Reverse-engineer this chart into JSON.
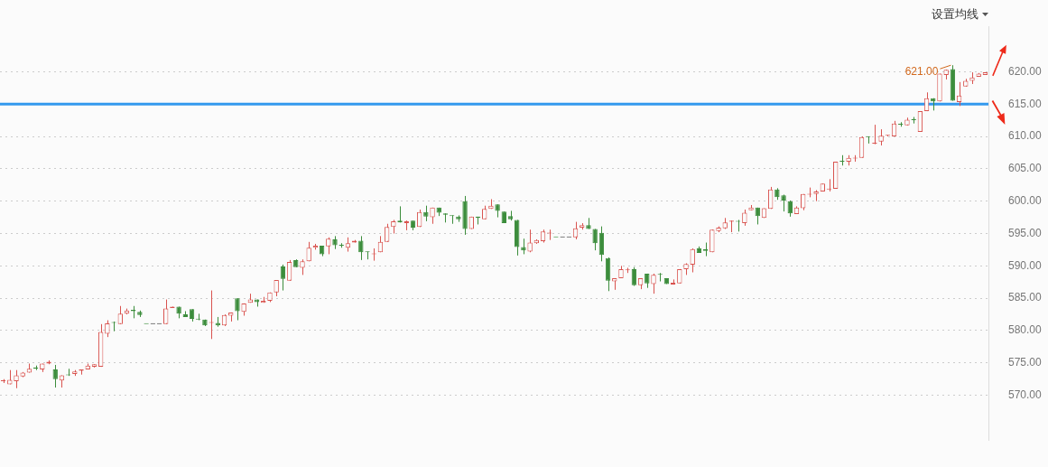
{
  "chart_data": {
    "type": "candlestick",
    "categories": [
      null,
      null,
      null,
      null,
      null,
      null,
      null,
      null,
      null,
      null,
      null,
      null,
      null,
      null,
      null,
      null,
      null,
      null,
      null,
      null,
      null,
      null,
      null,
      null,
      null,
      null,
      null,
      null,
      null,
      null,
      null,
      null,
      null,
      null,
      null,
      null,
      null,
      null,
      null,
      null,
      null,
      null,
      null,
      null,
      null,
      null,
      null,
      null,
      null,
      null,
      null,
      null,
      null,
      null,
      null,
      null,
      null,
      null,
      null,
      null,
      null,
      null,
      null,
      null,
      null,
      null,
      null,
      null,
      null,
      null,
      null,
      null,
      null,
      null,
      null,
      null,
      null,
      null,
      null,
      null,
      null,
      null,
      null,
      null,
      null,
      null,
      null,
      null,
      null,
      null,
      null,
      null,
      null,
      null,
      null,
      null,
      null,
      null,
      null,
      null,
      null,
      null,
      null,
      null,
      null,
      null,
      null,
      null,
      null,
      null,
      null,
      null,
      null,
      null,
      null,
      null,
      null,
      null,
      null,
      null,
      null,
      null,
      null,
      null,
      null,
      null,
      null,
      null,
      null,
      null,
      null,
      null,
      null,
      null,
      null,
      null,
      null,
      null,
      null,
      null,
      null,
      null,
      null,
      null,
      null,
      null,
      null,
      null,
      null,
      null,
      null,
      null
    ],
    "ohlc": [
      [
        572.2,
        572.5,
        571.9,
        572.2
      ],
      [
        571.7,
        573.9,
        571.7,
        572.4
      ],
      [
        572.2,
        573.9,
        571.1,
        573.1
      ],
      [
        572.9,
        573.6,
        572.8,
        573.5
      ],
      [
        573.5,
        574.9,
        573.5,
        574.1
      ],
      [
        574.3,
        574.6,
        573.9,
        574.1
      ],
      [
        574.0,
        574.9,
        573.6,
        574.9
      ],
      [
        574.9,
        575.4,
        574.8,
        575.2
      ],
      [
        574.0,
        574.7,
        571.2,
        572.5
      ],
      [
        572.3,
        573.1,
        571.2,
        573.1
      ],
      [
        573.2,
        574.1,
        573.0,
        573.1
      ],
      [
        573.3,
        573.9,
        573.0,
        573.7
      ],
      [
        573.8,
        574.0,
        573.2,
        574.0
      ],
      [
        574.0,
        574.9,
        574.0,
        574.6
      ],
      [
        574.4,
        574.8,
        574.3,
        574.8
      ],
      [
        574.4,
        581.0,
        574.4,
        579.8
      ],
      [
        579.5,
        581.6,
        579.0,
        581.1
      ],
      [
        581.3,
        581.4,
        579.9,
        581.2
      ],
      [
        581.0,
        583.8,
        581.0,
        582.6
      ],
      [
        582.6,
        583.4,
        582.5,
        583.1
      ],
      [
        583.2,
        583.8,
        581.9,
        583.0
      ],
      [
        582.9,
        583.1,
        582.1,
        582.4
      ],
      [
        581.0,
        581.0,
        581.0,
        581.0
      ],
      [
        581.0,
        581.0,
        581.0,
        581.0
      ],
      [
        581.0,
        581.0,
        581.0,
        581.0
      ],
      [
        581.0,
        584.8,
        581.0,
        583.4
      ],
      [
        583.5,
        583.7,
        583.5,
        583.7
      ],
      [
        583.7,
        583.7,
        581.9,
        582.6
      ],
      [
        582.5,
        583.0,
        582.1,
        582.1
      ],
      [
        583.3,
        583.3,
        581.4,
        581.8
      ],
      [
        581.8,
        582.6,
        581.6,
        581.7
      ],
      [
        581.7,
        581.7,
        580.7,
        580.8
      ],
      [
        581.2,
        586.2,
        578.7,
        581.3
      ],
      [
        581.2,
        582.1,
        580.6,
        580.8
      ],
      [
        580.8,
        582.5,
        580.7,
        582.4
      ],
      [
        582.3,
        582.8,
        581.4,
        582.8
      ],
      [
        585.0,
        585.0,
        581.6,
        583.0
      ],
      [
        582.9,
        584.2,
        582.3,
        584.2
      ],
      [
        584.3,
        585.7,
        584.3,
        584.8
      ],
      [
        584.8,
        584.8,
        583.7,
        584.4
      ],
      [
        584.3,
        585.2,
        584.3,
        584.6
      ],
      [
        584.6,
        585.9,
        584.4,
        585.9
      ],
      [
        585.9,
        587.8,
        585.3,
        587.8
      ],
      [
        589.9,
        590.2,
        586.2,
        588.0
      ],
      [
        587.7,
        590.9,
        587.7,
        590.6
      ],
      [
        590.9,
        591.0,
        589.8,
        589.8
      ],
      [
        589.7,
        591.0,
        588.6,
        590.7
      ],
      [
        590.7,
        593.7,
        590.7,
        592.8
      ],
      [
        592.8,
        593.4,
        592.5,
        593.1
      ],
      [
        593.1,
        593.1,
        591.5,
        591.8
      ],
      [
        593.0,
        594.4,
        591.8,
        594.2
      ],
      [
        594.1,
        594.6,
        592.6,
        593.2
      ],
      [
        593.2,
        593.5,
        592.8,
        593.1
      ],
      [
        592.8,
        594.4,
        592.2,
        593.5
      ],
      [
        593.6,
        594.0,
        593.6,
        593.9
      ],
      [
        593.9,
        594.6,
        590.9,
        592.1
      ],
      [
        592.2,
        592.2,
        591.0,
        592.1
      ],
      [
        591.8,
        592.7,
        590.8,
        591.9
      ],
      [
        592.1,
        594.6,
        592.1,
        593.7
      ],
      [
        593.7,
        596.5,
        593.7,
        596.0
      ],
      [
        596.0,
        597.1,
        595.0,
        596.9
      ],
      [
        597.0,
        599.2,
        596.7,
        596.7
      ],
      [
        596.6,
        597.0,
        595.5,
        596.9
      ],
      [
        597.0,
        597.0,
        595.5,
        595.9
      ],
      [
        596.0,
        598.7,
        596.0,
        598.3
      ],
      [
        598.3,
        599.3,
        596.9,
        597.6
      ],
      [
        597.5,
        599.0,
        596.5,
        599.0
      ],
      [
        599.0,
        599.0,
        597.7,
        598.2
      ],
      [
        598.1,
        598.1,
        596.7,
        597.9
      ],
      [
        597.8,
        597.8,
        596.5,
        597.7
      ],
      [
        597.6,
        597.8,
        596.8,
        597.2
      ],
      [
        600.0,
        600.8,
        594.8,
        595.7
      ],
      [
        595.7,
        597.6,
        595.7,
        597.6
      ],
      [
        597.6,
        597.6,
        596.4,
        597.4
      ],
      [
        597.2,
        599.3,
        597.2,
        598.8
      ],
      [
        598.8,
        600.3,
        598.8,
        599.3
      ],
      [
        599.5,
        599.5,
        597.5,
        598.5
      ],
      [
        598.4,
        598.4,
        596.6,
        596.6
      ],
      [
        597.7,
        598.5,
        597.0,
        597.2
      ],
      [
        597.1,
        597.1,
        591.6,
        592.9
      ],
      [
        592.9,
        594.2,
        591.8,
        592.4
      ],
      [
        592.2,
        595.6,
        592.1,
        593.6
      ],
      [
        593.5,
        594.1,
        593.4,
        594.0
      ],
      [
        593.8,
        595.6,
        593.6,
        595.3
      ],
      [
        595.0,
        595.6,
        594.0,
        595.1
      ],
      [
        594.4,
        594.4,
        594.4,
        594.4
      ],
      [
        594.4,
        594.4,
        594.4,
        594.4
      ],
      [
        594.4,
        594.4,
        594.4,
        594.4
      ],
      [
        594.4,
        596.8,
        594.1,
        595.8
      ],
      [
        595.9,
        596.6,
        595.6,
        596.3
      ],
      [
        596.3,
        597.4,
        595.7,
        595.7
      ],
      [
        595.7,
        595.7,
        592.4,
        593.5
      ],
      [
        595.1,
        596.1,
        590.7,
        591.7
      ],
      [
        591.2,
        591.3,
        586.1,
        587.7
      ],
      [
        587.6,
        588.1,
        586.3,
        588.1
      ],
      [
        588.1,
        590.0,
        588.1,
        589.5
      ],
      [
        589.3,
        589.7,
        588.9,
        589.4
      ],
      [
        589.5,
        589.8,
        586.9,
        587.0
      ],
      [
        587.0,
        588.1,
        586.4,
        588.1
      ],
      [
        588.8,
        588.8,
        586.6,
        587.3
      ],
      [
        587.2,
        588.8,
        585.7,
        588.6
      ],
      [
        588.7,
        588.9,
        587.6,
        588.6
      ],
      [
        588.1,
        588.1,
        587.2,
        587.2
      ],
      [
        587.1,
        587.9,
        587.1,
        587.4
      ],
      [
        587.3,
        589.5,
        587.3,
        589.5
      ],
      [
        589.5,
        590.4,
        588.6,
        590.3
      ],
      [
        590.2,
        592.7,
        589.0,
        592.6
      ],
      [
        592.7,
        593.0,
        592.0,
        592.0
      ],
      [
        592.6,
        593.6,
        591.5,
        592.3
      ],
      [
        592.1,
        595.6,
        592.1,
        595.6
      ],
      [
        595.4,
        596.1,
        595.2,
        595.9
      ],
      [
        595.8,
        597.4,
        595.7,
        596.7
      ],
      [
        596.8,
        597.0,
        595.2,
        597.0
      ],
      [
        596.9,
        597.1,
        595.3,
        596.8
      ],
      [
        596.6,
        598.7,
        596.2,
        598.2
      ],
      [
        598.6,
        599.4,
        598.6,
        599.0
      ],
      [
        599.0,
        599.0,
        596.4,
        597.7
      ],
      [
        597.4,
        598.9,
        597.4,
        598.9
      ],
      [
        598.8,
        602.2,
        598.8,
        601.8
      ],
      [
        601.8,
        602.0,
        600.2,
        600.6
      ],
      [
        600.9,
        601.0,
        598.4,
        600.1
      ],
      [
        600.0,
        600.1,
        597.6,
        598.1
      ],
      [
        598.0,
        599.2,
        598.0,
        599.0
      ],
      [
        598.9,
        601.1,
        598.6,
        601.1
      ],
      [
        601.0,
        602.1,
        600.6,
        601.1
      ],
      [
        601.1,
        601.7,
        600.0,
        601.5
      ],
      [
        601.5,
        602.7,
        601.5,
        602.7
      ],
      [
        601.8,
        603.4,
        601.5,
        601.9
      ],
      [
        601.9,
        606.1,
        601.9,
        606.1
      ],
      [
        606.2,
        607.1,
        605.5,
        606.1
      ],
      [
        606.1,
        607.1,
        605.5,
        606.7
      ],
      [
        606.6,
        607.1,
        606.1,
        606.7
      ],
      [
        606.7,
        610.0,
        606.7,
        609.9
      ],
      [
        610.0,
        610.0,
        608.9,
        609.9
      ],
      [
        608.9,
        611.8,
        608.8,
        609.0
      ],
      [
        609.2,
        611.1,
        608.6,
        610.1
      ],
      [
        610.1,
        610.2,
        610.0,
        610.2
      ],
      [
        610.0,
        612.4,
        610.0,
        612.0
      ],
      [
        611.9,
        612.2,
        611.5,
        611.8
      ],
      [
        611.7,
        612.9,
        611.7,
        612.6
      ],
      [
        612.6,
        613.0,
        612.0,
        612.5
      ],
      [
        610.7,
        613.9,
        610.7,
        613.9
      ],
      [
        613.9,
        616.8,
        613.9,
        615.9
      ],
      [
        615.9,
        615.9,
        614.0,
        615.4
      ],
      [
        615.4,
        619.7,
        615.4,
        619.7
      ],
      [
        619.5,
        620.3,
        618.8,
        620.3
      ],
      [
        620.4,
        621.0,
        615.5,
        615.5
      ],
      [
        615.3,
        618.4,
        614.7,
        616.3
      ],
      [
        617.7,
        618.9,
        617.7,
        618.6
      ],
      [
        618.6,
        619.9,
        618.1,
        619.1
      ],
      [
        619.2,
        619.8,
        619.2,
        619.7
      ],
      [
        619.5,
        619.9,
        619.5,
        619.9
      ]
    ],
    "colors": [
      "#d9534f",
      "#d9534f",
      "#d9534f",
      "#d9534f",
      "#d9534f",
      "#3c8d3c",
      "#d9534f",
      "#d9534f",
      "#3c8d3c",
      "#d9534f",
      "#3c8d3c",
      "#d9534f",
      "#d9534f",
      "#d9534f",
      "#d9534f",
      "#d9534f",
      "#d9534f",
      "#3c8d3c",
      "#d9534f",
      "#d9534f",
      "#3c8d3c",
      "#3c8d3c",
      "#3c8d3c",
      "#333333",
      "#333333",
      "#d9534f",
      "#d9534f",
      "#3c8d3c",
      "#3c8d3c",
      "#3c8d3c",
      "#3c8d3c",
      "#3c8d3c",
      "#d9534f",
      "#3c8d3c",
      "#d9534f",
      "#d9534f",
      "#3c8d3c",
      "#d9534f",
      "#d9534f",
      "#3c8d3c",
      "#d9534f",
      "#d9534f",
      "#d9534f",
      "#3c8d3c",
      "#d9534f",
      "#3c8d3c",
      "#d9534f",
      "#d9534f",
      "#d9534f",
      "#3c8d3c",
      "#d9534f",
      "#3c8d3c",
      "#3c8d3c",
      "#d9534f",
      "#d9534f",
      "#3c8d3c",
      "#3c8d3c",
      "#d9534f",
      "#d9534f",
      "#d9534f",
      "#d9534f",
      "#3c8d3c",
      "#d9534f",
      "#3c8d3c",
      "#d9534f",
      "#3c8d3c",
      "#d9534f",
      "#3c8d3c",
      "#3c8d3c",
      "#3c8d3c",
      "#3c8d3c",
      "#3c8d3c",
      "#d9534f",
      "#3c8d3c",
      "#d9534f",
      "#d9534f",
      "#3c8d3c",
      "#3c8d3c",
      "#3c8d3c",
      "#3c8d3c",
      "#3c8d3c",
      "#d9534f",
      "#d9534f",
      "#d9534f",
      "#d9534f",
      "#3c8d3c",
      "#333333",
      "#333333",
      "#d9534f",
      "#d9534f",
      "#3c8d3c",
      "#3c8d3c",
      "#3c8d3c",
      "#3c8d3c",
      "#d9534f",
      "#d9534f",
      "#d9534f",
      "#3c8d3c",
      "#d9534f",
      "#3c8d3c",
      "#d9534f",
      "#3c8d3c",
      "#3c8d3c",
      "#d9534f",
      "#d9534f",
      "#d9534f",
      "#d9534f",
      "#3c8d3c",
      "#3c8d3c",
      "#d9534f",
      "#d9534f",
      "#d9534f",
      "#d9534f",
      "#3c8d3c",
      "#d9534f",
      "#d9534f",
      "#3c8d3c",
      "#d9534f",
      "#d9534f",
      "#3c8d3c",
      "#3c8d3c",
      "#3c8d3c",
      "#d9534f",
      "#d9534f",
      "#d9534f",
      "#d9534f",
      "#d9534f",
      "#d9534f",
      "#d9534f",
      "#3c8d3c",
      "#d9534f",
      "#d9534f",
      "#d9534f",
      "#3c8d3c",
      "#d9534f",
      "#d9534f",
      "#d9534f",
      "#d9534f",
      "#3c8d3c",
      "#d9534f",
      "#3c8d3c",
      "#d9534f",
      "#d9534f",
      "#3c8d3c",
      "#d9534f",
      "#d9534f",
      "#3c8d3c",
      "#d9534f",
      "#d9534f",
      "#d9534f",
      "#d9534f",
      "#d9534f"
    ],
    "ylim": [
      563,
      627
    ],
    "yticks": [
      {
        "value": 570,
        "label": "570.00"
      },
      {
        "value": 575,
        "label": "575.00"
      },
      {
        "value": 580,
        "label": "580.00"
      },
      {
        "value": 585,
        "label": "585.00"
      },
      {
        "value": 590,
        "label": "590.00"
      },
      {
        "value": 595,
        "label": "595.00"
      },
      {
        "value": 600,
        "label": "600.00"
      },
      {
        "value": 605,
        "label": "605.00"
      },
      {
        "value": 610,
        "label": "610.00"
      },
      {
        "value": 615,
        "label": "615.00"
      },
      {
        "value": 620,
        "label": "620.00"
      }
    ],
    "grid": "y",
    "tick_labels": "y",
    "ref_lines": [
      {
        "axis": "y",
        "value": 615,
        "color": "#3399ee"
      }
    ],
    "annotations": [
      "621.00",
      "设置均线"
    ]
  }
}
